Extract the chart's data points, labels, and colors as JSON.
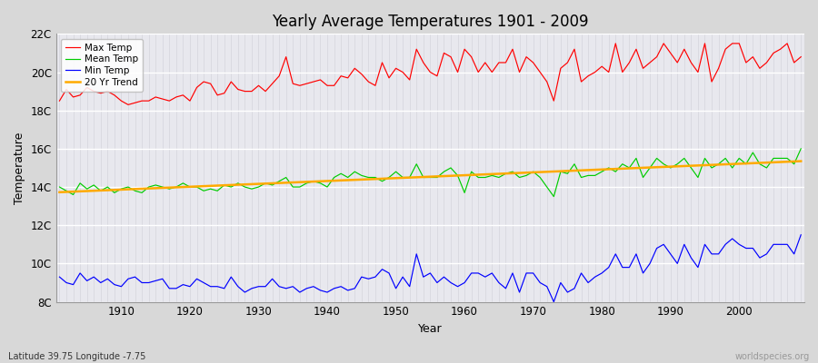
{
  "title": "Yearly Average Temperatures 1901 - 2009",
  "xlabel": "Year",
  "ylabel": "Temperature",
  "lat_lon_label": "Latitude 39.75 Longitude -7.75",
  "credit_label": "worldspecies.org",
  "bg_color": "#d8d8d8",
  "plot_bg_color": "#e8e8ee",
  "grid_color_major": "#ffffff",
  "grid_color_minor": "#d0d0d8",
  "years": [
    1901,
    1902,
    1903,
    1904,
    1905,
    1906,
    1907,
    1908,
    1909,
    1910,
    1911,
    1912,
    1913,
    1914,
    1915,
    1916,
    1917,
    1918,
    1919,
    1920,
    1921,
    1922,
    1923,
    1924,
    1925,
    1926,
    1927,
    1928,
    1929,
    1930,
    1931,
    1932,
    1933,
    1934,
    1935,
    1936,
    1937,
    1938,
    1939,
    1940,
    1941,
    1942,
    1943,
    1944,
    1945,
    1946,
    1947,
    1948,
    1949,
    1950,
    1951,
    1952,
    1953,
    1954,
    1955,
    1956,
    1957,
    1958,
    1959,
    1960,
    1961,
    1962,
    1963,
    1964,
    1965,
    1966,
    1967,
    1968,
    1969,
    1970,
    1971,
    1972,
    1973,
    1974,
    1975,
    1976,
    1977,
    1978,
    1979,
    1980,
    1981,
    1982,
    1983,
    1984,
    1985,
    1986,
    1987,
    1988,
    1989,
    1990,
    1991,
    1992,
    1993,
    1994,
    1995,
    1996,
    1997,
    1998,
    1999,
    2000,
    2001,
    2002,
    2003,
    2004,
    2005,
    2006,
    2007,
    2008,
    2009
  ],
  "max_temp": [
    18.5,
    19.1,
    18.7,
    18.8,
    19.2,
    19.0,
    18.9,
    19.0,
    18.8,
    18.5,
    18.3,
    18.4,
    18.5,
    18.5,
    18.7,
    18.6,
    18.5,
    18.7,
    18.8,
    18.5,
    19.2,
    19.5,
    19.4,
    18.8,
    18.9,
    19.5,
    19.1,
    19.0,
    19.0,
    19.3,
    19.0,
    19.4,
    19.8,
    20.8,
    19.4,
    19.3,
    19.4,
    19.5,
    19.6,
    19.3,
    19.3,
    19.8,
    19.7,
    20.2,
    19.9,
    19.5,
    19.3,
    20.5,
    19.7,
    20.2,
    20.0,
    19.6,
    21.2,
    20.5,
    20.0,
    19.8,
    21.0,
    20.8,
    20.0,
    21.2,
    20.8,
    20.0,
    20.5,
    20.0,
    20.5,
    20.5,
    21.2,
    20.0,
    20.8,
    20.5,
    20.0,
    19.5,
    18.5,
    20.2,
    20.5,
    21.2,
    19.5,
    19.8,
    20.0,
    20.3,
    20.0,
    21.5,
    20.0,
    20.5,
    21.2,
    20.2,
    20.5,
    20.8,
    21.5,
    21.0,
    20.5,
    21.2,
    20.5,
    20.0,
    21.5,
    19.5,
    20.2,
    21.2,
    21.5,
    21.5,
    20.5,
    20.8,
    20.2,
    20.5,
    21.0,
    21.2,
    21.5,
    20.5,
    20.8
  ],
  "mean_temp": [
    14.0,
    13.8,
    13.6,
    14.2,
    13.9,
    14.1,
    13.8,
    14.0,
    13.7,
    13.9,
    14.0,
    13.8,
    13.7,
    14.0,
    14.1,
    14.0,
    13.9,
    14.0,
    14.2,
    14.0,
    14.0,
    13.8,
    13.9,
    13.8,
    14.1,
    14.0,
    14.2,
    14.0,
    13.9,
    14.0,
    14.2,
    14.1,
    14.3,
    14.5,
    14.0,
    14.0,
    14.2,
    14.3,
    14.2,
    14.0,
    14.5,
    14.7,
    14.5,
    14.8,
    14.6,
    14.5,
    14.5,
    14.3,
    14.5,
    14.8,
    14.5,
    14.5,
    15.2,
    14.5,
    14.5,
    14.5,
    14.8,
    15.0,
    14.6,
    13.7,
    14.8,
    14.5,
    14.5,
    14.6,
    14.5,
    14.7,
    14.8,
    14.5,
    14.6,
    14.8,
    14.5,
    14.0,
    13.5,
    14.8,
    14.7,
    15.2,
    14.5,
    14.6,
    14.6,
    14.8,
    15.0,
    14.8,
    15.2,
    15.0,
    15.5,
    14.5,
    15.0,
    15.5,
    15.2,
    15.0,
    15.2,
    15.5,
    15.0,
    14.5,
    15.5,
    15.0,
    15.2,
    15.5,
    15.0,
    15.5,
    15.2,
    15.8,
    15.2,
    15.0,
    15.5,
    15.5,
    15.5,
    15.2,
    16.0
  ],
  "min_temp": [
    9.3,
    9.0,
    8.9,
    9.5,
    9.1,
    9.3,
    9.0,
    9.2,
    8.9,
    8.8,
    9.2,
    9.3,
    9.0,
    9.0,
    9.1,
    9.2,
    8.7,
    8.7,
    8.9,
    8.8,
    9.2,
    9.0,
    8.8,
    8.8,
    8.7,
    9.3,
    8.8,
    8.5,
    8.7,
    8.8,
    8.8,
    9.2,
    8.8,
    8.7,
    8.8,
    8.5,
    8.7,
    8.8,
    8.6,
    8.5,
    8.7,
    8.8,
    8.6,
    8.7,
    9.3,
    9.2,
    9.3,
    9.7,
    9.5,
    8.7,
    9.3,
    8.8,
    10.5,
    9.3,
    9.5,
    9.0,
    9.3,
    9.0,
    8.8,
    9.0,
    9.5,
    9.5,
    9.3,
    9.5,
    9.0,
    8.7,
    9.5,
    8.5,
    9.5,
    9.5,
    9.0,
    8.8,
    8.0,
    9.0,
    8.5,
    8.7,
    9.5,
    9.0,
    9.3,
    9.5,
    9.8,
    10.5,
    9.8,
    9.8,
    10.5,
    9.5,
    10.0,
    10.8,
    11.0,
    10.5,
    10.0,
    11.0,
    10.3,
    9.8,
    11.0,
    10.5,
    10.5,
    11.0,
    11.3,
    11.0,
    10.8,
    10.8,
    10.3,
    10.5,
    11.0,
    11.0,
    11.0,
    10.5,
    11.5
  ],
  "ylim": [
    8.0,
    22.0
  ],
  "yticks": [
    8,
    10,
    12,
    14,
    16,
    18,
    20,
    22
  ],
  "ytick_labels": [
    "8C",
    "10C",
    "12C",
    "14C",
    "16C",
    "18C",
    "20C",
    "22C"
  ],
  "xlim_min": 1901,
  "xlim_max": 2009,
  "line_colors": {
    "max": "#ff0000",
    "mean": "#00cc00",
    "min": "#0000ff",
    "trend": "#ffaa00"
  },
  "legend_labels": [
    "Max Temp",
    "Mean Temp",
    "Min Temp",
    "20 Yr Trend"
  ]
}
